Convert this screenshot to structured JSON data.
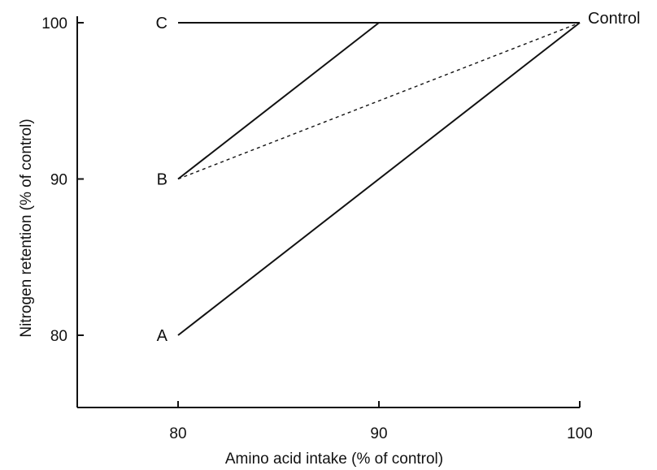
{
  "chart_data": {
    "type": "line",
    "title": "",
    "xlabel": "Amino acid intake (% of control)",
    "ylabel": "Nitrogen retention (% of control)",
    "xlim": [
      75,
      100
    ],
    "ylim": [
      75,
      100
    ],
    "x_ticks": [
      80,
      90,
      100
    ],
    "y_ticks": [
      80,
      90,
      100
    ],
    "grid": false,
    "series": [
      {
        "label": "A",
        "line_style": "solid",
        "points": [
          [
            80,
            80
          ],
          [
            100,
            100
          ]
        ]
      },
      {
        "label": "B",
        "line_style": "solid",
        "points": [
          [
            80,
            90
          ],
          [
            90,
            100
          ]
        ]
      },
      {
        "label": "B",
        "line_style": "dashed",
        "points": [
          [
            80,
            90
          ],
          [
            100,
            100
          ]
        ]
      },
      {
        "label": "C",
        "line_style": "solid",
        "points": [
          [
            80,
            100
          ],
          [
            100,
            100
          ]
        ]
      }
    ],
    "annotations": [
      {
        "text": "Control",
        "x": 100,
        "y": 100
      }
    ]
  }
}
